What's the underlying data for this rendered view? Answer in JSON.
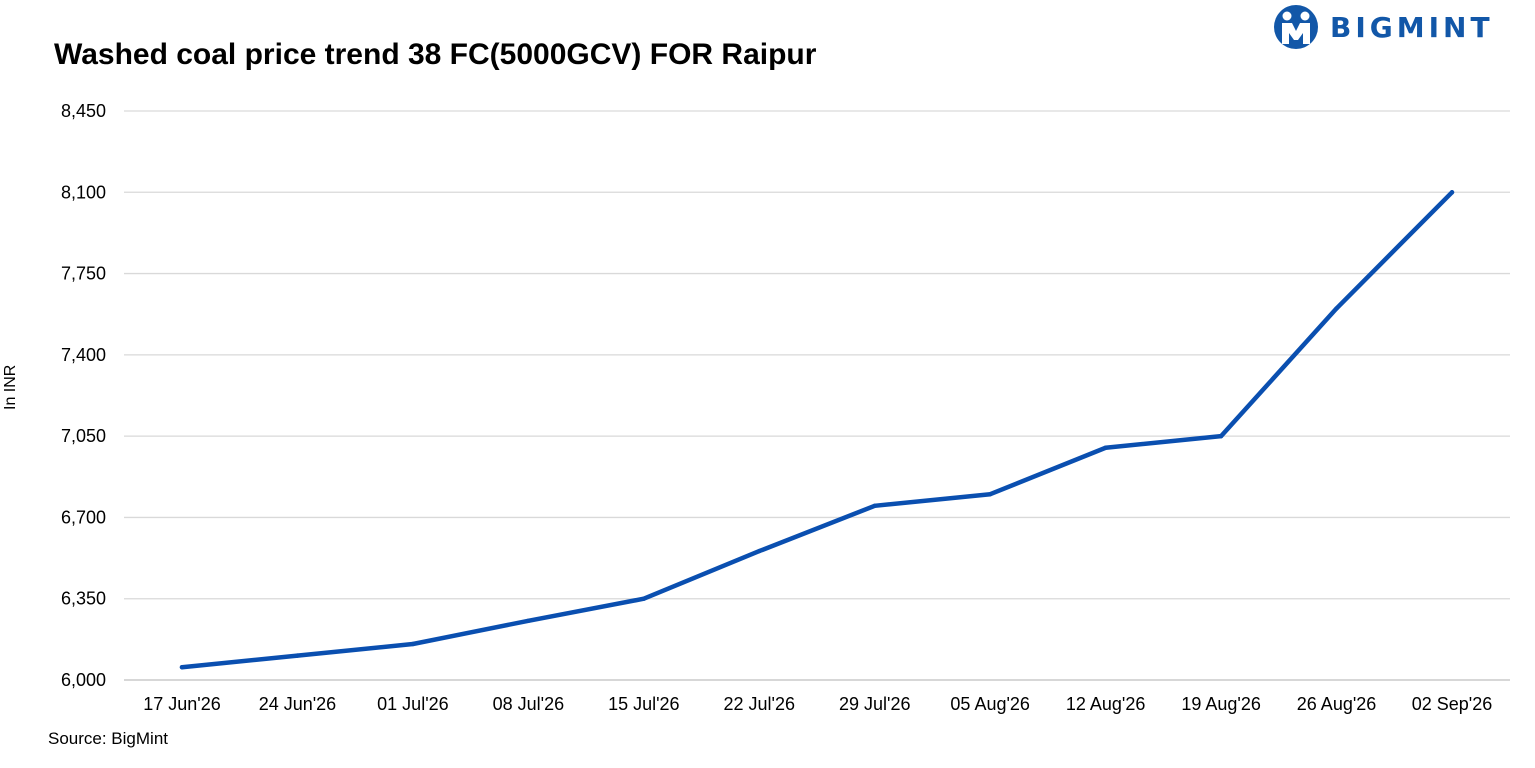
{
  "logo": {
    "text": "BIGMINT",
    "color": "#1257a8"
  },
  "source": "Source: BigMint",
  "chart_data": {
    "type": "line",
    "title": "Washed coal price trend 38 FC(5000GCV) FOR Raipur",
    "xlabel": "",
    "ylabel": "In INR",
    "ylim": [
      6000,
      8450
    ],
    "yticks": [
      6000,
      6350,
      6700,
      7050,
      7400,
      7750,
      8100,
      8450
    ],
    "ytick_labels": [
      "6,000",
      "6,350",
      "6,700",
      "7,050",
      "7,400",
      "7,750",
      "8,100",
      "8,450"
    ],
    "categories": [
      "17 Jun'26",
      "24 Jun'26",
      "01 Jul'26",
      "08 Jul'26",
      "15 Jul'26",
      "22 Jul'26",
      "29 Jul'26",
      "05 Aug'26",
      "12 Aug'26",
      "19 Aug'26",
      "26 Aug'26",
      "02 Sep'26"
    ],
    "series": [
      {
        "name": "",
        "color": "#0a4fb0",
        "values": [
          6055,
          6105,
          6155,
          6255,
          6350,
          6555,
          6750,
          6800,
          7000,
          7050,
          7600,
          8100
        ]
      }
    ],
    "grid": true,
    "legend": "none"
  }
}
